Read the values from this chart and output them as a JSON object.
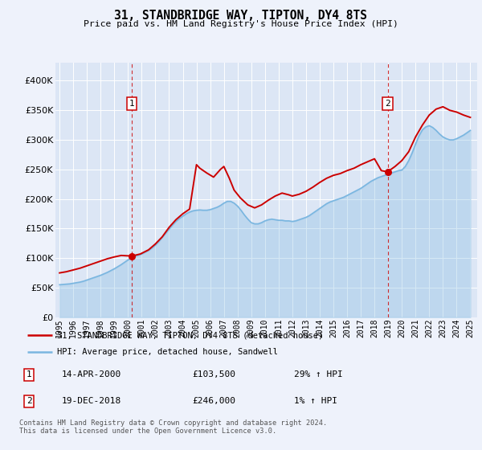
{
  "title": "31, STANDBRIDGE WAY, TIPTON, DY4 8TS",
  "subtitle": "Price paid vs. HM Land Registry's House Price Index (HPI)",
  "background_color": "#eef2fb",
  "plot_bg_color": "#dce6f5",
  "ytick_values": [
    0,
    50000,
    100000,
    150000,
    200000,
    250000,
    300000,
    350000,
    400000
  ],
  "ylim": [
    0,
    430000
  ],
  "xlim_start": 1994.7,
  "xlim_end": 2025.5,
  "sale1_year": 2000.28,
  "sale1_price": 103500,
  "sale2_year": 2018.96,
  "sale2_price": 246000,
  "legend_line1": "31, STANDBRIDGE WAY, TIPTON, DY4 8TS (detached house)",
  "legend_line2": "HPI: Average price, detached house, Sandwell",
  "note1_label": "1",
  "note1_date": "14-APR-2000",
  "note1_price": "£103,500",
  "note1_hpi": "29% ↑ HPI",
  "note2_label": "2",
  "note2_date": "19-DEC-2018",
  "note2_price": "£246,000",
  "note2_hpi": "1% ↑ HPI",
  "footer": "Contains HM Land Registry data © Crown copyright and database right 2024.\nThis data is licensed under the Open Government Licence v3.0.",
  "hpi_color": "#7ab6e0",
  "price_color": "#cc0000",
  "marker_color": "#cc0000",
  "hpi_x": [
    1995.0,
    1995.25,
    1995.5,
    1995.75,
    1996.0,
    1996.25,
    1996.5,
    1996.75,
    1997.0,
    1997.25,
    1997.5,
    1997.75,
    1998.0,
    1998.25,
    1998.5,
    1998.75,
    1999.0,
    1999.25,
    1999.5,
    1999.75,
    2000.0,
    2000.25,
    2000.5,
    2000.75,
    2001.0,
    2001.25,
    2001.5,
    2001.75,
    2002.0,
    2002.25,
    2002.5,
    2002.75,
    2003.0,
    2003.25,
    2003.5,
    2003.75,
    2004.0,
    2004.25,
    2004.5,
    2004.75,
    2005.0,
    2005.25,
    2005.5,
    2005.75,
    2006.0,
    2006.25,
    2006.5,
    2006.75,
    2007.0,
    2007.25,
    2007.5,
    2007.75,
    2008.0,
    2008.25,
    2008.5,
    2008.75,
    2009.0,
    2009.25,
    2009.5,
    2009.75,
    2010.0,
    2010.25,
    2010.5,
    2010.75,
    2011.0,
    2011.25,
    2011.5,
    2011.75,
    2012.0,
    2012.25,
    2012.5,
    2012.75,
    2013.0,
    2013.25,
    2013.5,
    2013.75,
    2014.0,
    2014.25,
    2014.5,
    2014.75,
    2015.0,
    2015.25,
    2015.5,
    2015.75,
    2016.0,
    2016.25,
    2016.5,
    2016.75,
    2017.0,
    2017.25,
    2017.5,
    2017.75,
    2018.0,
    2018.25,
    2018.5,
    2018.75,
    2019.0,
    2019.25,
    2019.5,
    2019.75,
    2020.0,
    2020.25,
    2020.5,
    2020.75,
    2021.0,
    2021.25,
    2021.5,
    2021.75,
    2022.0,
    2022.25,
    2022.5,
    2022.75,
    2023.0,
    2023.25,
    2023.5,
    2023.75,
    2024.0,
    2024.25,
    2024.5,
    2024.75,
    2025.0
  ],
  "hpi_y": [
    55000,
    55500,
    56000,
    56500,
    57500,
    58500,
    59500,
    61000,
    63000,
    65000,
    67000,
    69000,
    71000,
    73500,
    76000,
    79000,
    82000,
    85500,
    89000,
    93000,
    97000,
    100500,
    103000,
    105000,
    107000,
    110000,
    113000,
    117000,
    122000,
    128000,
    135000,
    142000,
    149000,
    156000,
    162000,
    167000,
    171000,
    175000,
    178000,
    180000,
    181000,
    181500,
    181000,
    181000,
    182000,
    184000,
    186000,
    189000,
    193000,
    196000,
    196000,
    193000,
    188000,
    181000,
    173000,
    166000,
    160000,
    158000,
    158000,
    160000,
    163000,
    165000,
    166000,
    165000,
    164000,
    164000,
    163000,
    163000,
    162000,
    163000,
    165000,
    167000,
    169000,
    172000,
    176000,
    180000,
    184000,
    188000,
    192000,
    195000,
    197000,
    199000,
    201000,
    203000,
    206000,
    209000,
    212000,
    215000,
    218000,
    222000,
    226000,
    230000,
    233000,
    236000,
    238000,
    240000,
    242000,
    244000,
    246000,
    248000,
    249000,
    255000,
    265000,
    278000,
    293000,
    307000,
    317000,
    322000,
    324000,
    321000,
    316000,
    310000,
    305000,
    302000,
    300000,
    300000,
    302000,
    305000,
    308000,
    312000,
    316000
  ],
  "price_x": [
    1995.0,
    1995.5,
    1996.0,
    1996.5,
    1997.0,
    1997.5,
    1998.0,
    1998.5,
    1999.0,
    1999.5,
    2000.28,
    2000.9,
    2001.5,
    2002.0,
    2002.5,
    2003.0,
    2003.5,
    2004.0,
    2004.5,
    2005.0,
    2005.25,
    2005.75,
    2006.25,
    2006.75,
    2007.0,
    2007.4,
    2007.75,
    2008.2,
    2008.75,
    2009.25,
    2009.75,
    2010.25,
    2010.75,
    2011.25,
    2011.75,
    2012.0,
    2012.5,
    2013.0,
    2013.5,
    2014.0,
    2014.5,
    2015.0,
    2015.5,
    2016.0,
    2016.5,
    2017.0,
    2017.5,
    2018.0,
    2018.5,
    2018.96,
    2019.5,
    2020.0,
    2020.5,
    2021.0,
    2021.5,
    2022.0,
    2022.5,
    2023.0,
    2023.5,
    2024.0,
    2024.5,
    2025.0
  ],
  "price_y": [
    75000,
    77000,
    80000,
    83000,
    87000,
    91000,
    95000,
    99000,
    102000,
    104500,
    103500,
    107000,
    114000,
    124000,
    136000,
    152000,
    165000,
    175000,
    183000,
    258000,
    252000,
    244000,
    237000,
    250000,
    255000,
    235000,
    215000,
    202000,
    190000,
    185000,
    190000,
    198000,
    205000,
    210000,
    207000,
    205000,
    208000,
    213000,
    220000,
    228000,
    235000,
    240000,
    243000,
    248000,
    252000,
    258000,
    263000,
    268000,
    248000,
    246000,
    255000,
    265000,
    280000,
    305000,
    325000,
    342000,
    352000,
    356000,
    350000,
    347000,
    342000,
    338000
  ]
}
